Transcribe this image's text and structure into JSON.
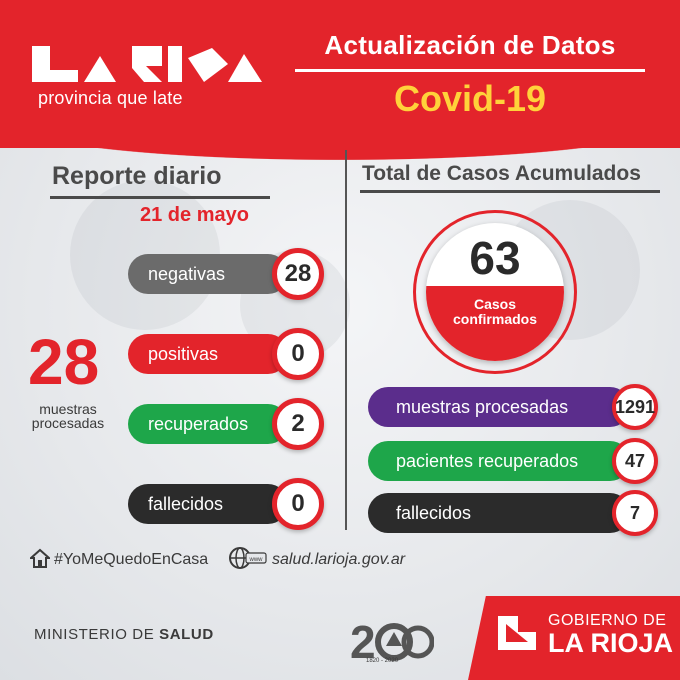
{
  "brand": {
    "tagline": "provincia que late"
  },
  "header": {
    "title": "Actualización de Datos",
    "subtitle": "Covid-19"
  },
  "daily": {
    "heading": "Reporte diario",
    "date": "21 de mayo",
    "total_samples": "28",
    "total_samples_label_1": "muestras",
    "total_samples_label_2": "procesadas",
    "rows": [
      {
        "label": "negativas",
        "value": "28",
        "color": "#6b6b6b"
      },
      {
        "label": "positivas",
        "value": "0",
        "color": "#e3242b"
      },
      {
        "label": "recuperados",
        "value": "2",
        "color": "#1ea64a"
      },
      {
        "label": "fallecidos",
        "value": "0",
        "color": "#2b2b2b"
      }
    ]
  },
  "cumulative": {
    "heading": "Total de Casos Acumulados",
    "confirmed_value": "63",
    "confirmed_label_1": "Casos",
    "confirmed_label_2": "confirmados",
    "rows": [
      {
        "label": "muestras procesadas",
        "value": "1291",
        "color": "#5b2d8c"
      },
      {
        "label": "pacientes recuperados",
        "value": "47",
        "color": "#1ea64a"
      },
      {
        "label": "fallecidos",
        "value": "7",
        "color": "#2b2b2b"
      }
    ]
  },
  "footer": {
    "hashtag": "#YoMeQuedoEnCasa",
    "website": "salud.larioja.gov.ar",
    "ministry_prefix": "MINISTERIO DE",
    "ministry_name": "SALUD",
    "bicentennial_years": "1820 - 2020",
    "gov_line1": "GOBIERNO DE",
    "gov_line2": "LA RIOJA"
  },
  "colors": {
    "accent": "#e3242b",
    "highlight": "#ffd23a"
  }
}
